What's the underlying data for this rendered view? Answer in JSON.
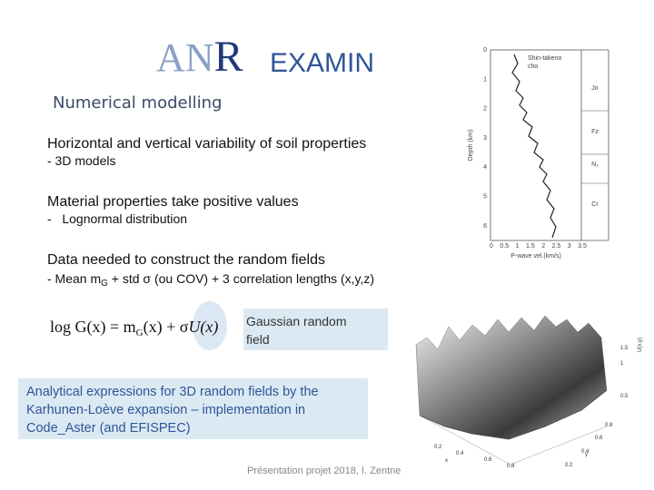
{
  "header": {
    "logo": {
      "a": "A",
      "n": "N",
      "r": "R"
    },
    "project": "EXAMIN",
    "section": "Numerical modelling"
  },
  "bullets": [
    {
      "title": "Horizontal and vertical variability of soil properties",
      "detail": "- 3D models"
    },
    {
      "title": "Material properties take positive values",
      "detail": "-   Lognormal distribution"
    },
    {
      "title": "Data needed to construct the random fields",
      "detail": {
        "before": "- Mean m",
        "subscript": "G",
        "after": " + std σ (ou COV) + 3 correlation lengths (x,y,z)"
      }
    }
  ],
  "formula": {
    "left": "log G(x) = m",
    "subscript": "G",
    "middle": "(x) + σ",
    "highlighted": "U(x)"
  },
  "callouts": {
    "gaussian": [
      "Gaussian random",
      "field"
    ],
    "analytical": [
      "Analytical expressions for 3D random fields by the",
      "Karhunen-Loève expansion – implementation in",
      "Code_Aster (and EFISPEC)"
    ]
  },
  "footer": "Présentation projet 2018, I. Zentne",
  "figures": {
    "profile": {
      "legend": [
        "Shin-takeno",
        "cho"
      ],
      "y_label": "Depth (km)",
      "x_label": "P-wave vel.(km/s)",
      "y_ticks": [
        "0",
        "1",
        "2",
        "3",
        "4",
        "5",
        "6"
      ],
      "x_ticks": [
        "0",
        "0.5",
        "1",
        "1.5",
        "2",
        "2.5",
        "3",
        "3.5"
      ],
      "layers": [
        "Jo",
        "Fz",
        "N₂",
        "Cr"
      ]
    },
    "surface": {
      "z_label": "U(x,y)",
      "z_ticks": [
        "1.5",
        "1",
        "0.5"
      ],
      "y_label": "y",
      "y_ticks": [
        "0.8",
        "0.6",
        "0.4",
        "0.2"
      ],
      "x_label": "x",
      "x_ticks": [
        "0.2",
        "0.4",
        "0.6",
        "0.8"
      ]
    }
  }
}
